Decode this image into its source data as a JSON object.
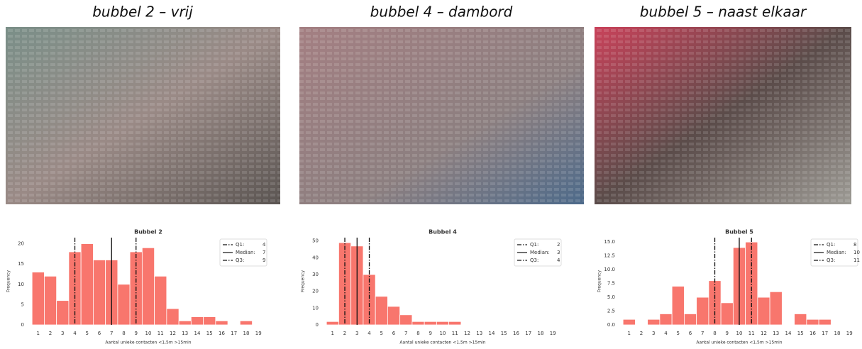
{
  "chart_data": [
    {
      "type": "histogram",
      "caption": "bubbel 2 – vrij",
      "title": "Bubbel 2",
      "x_label": "Aantal unieke contacten <1,5m >15min",
      "y_label": "Frequency",
      "color": "#f8766d",
      "x": [
        1,
        2,
        3,
        4,
        5,
        6,
        7,
        8,
        9,
        10,
        11,
        12,
        13,
        14,
        15,
        16,
        17,
        18,
        19
      ],
      "values": [
        13,
        12,
        6,
        18,
        20,
        16,
        16,
        10,
        18,
        19,
        12,
        4,
        1,
        2,
        2,
        1,
        0,
        1,
        0
      ],
      "xlim": [
        0.2,
        19.8
      ],
      "xticks": [
        1,
        2,
        3,
        4,
        5,
        6,
        7,
        8,
        9,
        10,
        11,
        12,
        13,
        14,
        15,
        16,
        17,
        18,
        19
      ],
      "ylim": [
        0,
        21.5
      ],
      "yticks": [
        0,
        5,
        10,
        15,
        20
      ],
      "stats": [
        {
          "name": "Q1:",
          "value": 4,
          "style": "dashdot"
        },
        {
          "name": "Median:",
          "value": 7,
          "style": "solid"
        },
        {
          "name": "Q3:",
          "value": 9,
          "style": "dashdot"
        }
      ]
    },
    {
      "type": "histogram",
      "caption": "bubbel 4 – dambord",
      "title": "Bubbel 4",
      "x_label": "Aantal unieke contacten <1,5m >15min",
      "y_label": "Frequency",
      "color": "#f8766d",
      "x": [
        1,
        2,
        3,
        4,
        5,
        6,
        7,
        8,
        9,
        10,
        11,
        12,
        13,
        14,
        15,
        16,
        17,
        18,
        19
      ],
      "values": [
        2,
        49,
        47,
        30,
        17,
        11,
        6,
        2,
        2,
        2,
        2,
        0,
        0,
        0,
        0,
        0,
        0,
        0,
        0
      ],
      "xlim": [
        0.2,
        19.8
      ],
      "xticks": [
        1,
        2,
        3,
        4,
        5,
        6,
        7,
        8,
        9,
        10,
        11,
        12,
        13,
        14,
        15,
        16,
        17,
        18,
        19
      ],
      "ylim": [
        0,
        52
      ],
      "yticks": [
        0,
        10,
        20,
        30,
        40,
        50
      ],
      "stats": [
        {
          "name": "Q1:",
          "value": 2,
          "style": "dashdot"
        },
        {
          "name": "Median:",
          "value": 3,
          "style": "solid"
        },
        {
          "name": "Q3:",
          "value": 4,
          "style": "dashdot"
        }
      ]
    },
    {
      "type": "histogram",
      "caption": "bubbel 5 – naast elkaar",
      "title": "Bubbel 5",
      "x_label": "Aantal unieke contacten <1,5m >15min",
      "y_label": "Frequency",
      "color": "#f8766d",
      "x": [
        1,
        2,
        3,
        4,
        5,
        6,
        7,
        8,
        9,
        10,
        11,
        12,
        13,
        14,
        15,
        16,
        17,
        18,
        19
      ],
      "values": [
        1,
        0,
        1,
        2,
        7,
        2,
        5,
        8,
        4,
        14,
        15,
        5,
        6,
        0,
        2,
        1,
        1,
        0,
        0
      ],
      "xlim": [
        0.2,
        19.8
      ],
      "xticks": [
        1,
        2,
        3,
        4,
        5,
        6,
        7,
        8,
        9,
        10,
        11,
        12,
        13,
        14,
        15,
        16,
        17,
        18,
        19
      ],
      "ylim": [
        0,
        15.8
      ],
      "yticks": [
        {
          "value": 0,
          "label": "0.0"
        },
        {
          "value": 2.5,
          "label": "2.5"
        },
        {
          "value": 5,
          "label": "5.0"
        },
        {
          "value": 7.5,
          "label": "7.5"
        },
        {
          "value": 10,
          "label": "10.0"
        },
        {
          "value": 12.5,
          "label": "12.5"
        },
        {
          "value": 15,
          "label": "15.0"
        }
      ],
      "stats": [
        {
          "name": "Q1:",
          "value": 8,
          "style": "dashdot"
        },
        {
          "name": "Median:",
          "value": 10,
          "style": "solid"
        },
        {
          "name": "Q3:",
          "value": 11,
          "style": "dashdot"
        }
      ]
    }
  ]
}
